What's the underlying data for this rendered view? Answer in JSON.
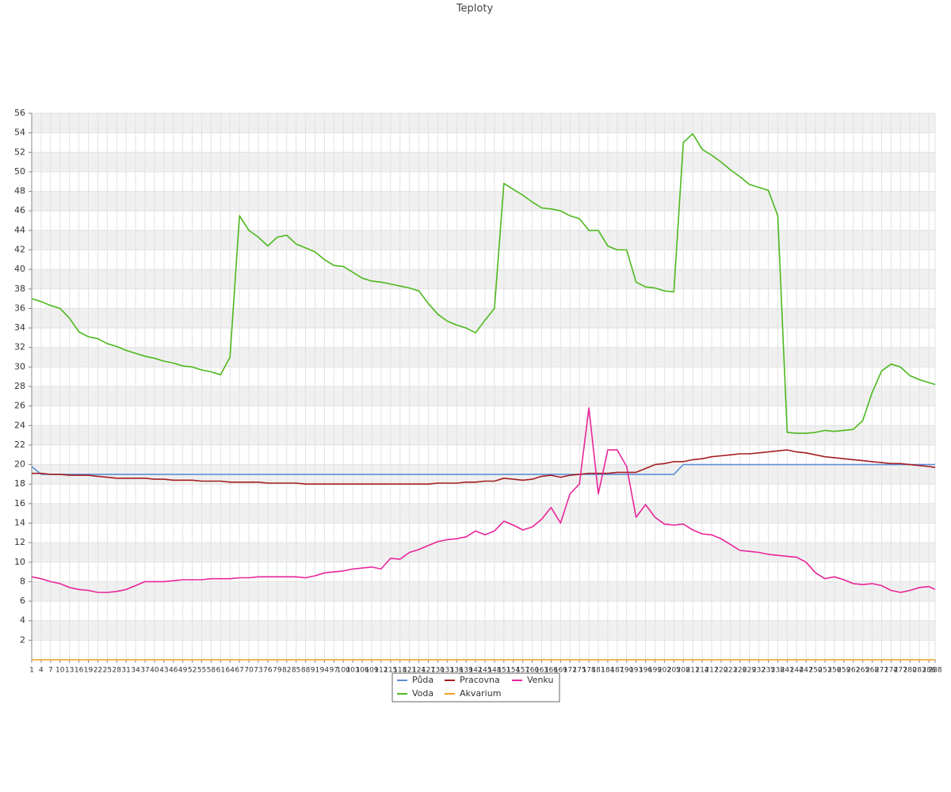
{
  "chart_data": {
    "type": "line",
    "title": "Teploty",
    "x": [
      1,
      4,
      7,
      10,
      13,
      16,
      19,
      22,
      25,
      28,
      31,
      34,
      37,
      40,
      43,
      46,
      49,
      52,
      55,
      58,
      61,
      64,
      67,
      70,
      73,
      76,
      79,
      82,
      85,
      88,
      91,
      94,
      97,
      100,
      103,
      106,
      109,
      112,
      115,
      118,
      121,
      124,
      127,
      130,
      133,
      136,
      139,
      142,
      145,
      148,
      151,
      154,
      157,
      160,
      163,
      166,
      169,
      172,
      175,
      178,
      181,
      184,
      187,
      190,
      193,
      196,
      199,
      202,
      205,
      208,
      211,
      214,
      217,
      220,
      223,
      226,
      229,
      232,
      235,
      238,
      241,
      244,
      247,
      250,
      253,
      256,
      259,
      262,
      265,
      268,
      271,
      274,
      277,
      280,
      283,
      286,
      288
    ],
    "xticks": [
      1,
      4,
      7,
      10,
      13,
      16,
      19,
      22,
      25,
      28,
      31,
      34,
      37,
      40,
      43,
      46,
      49,
      52,
      55,
      58,
      61,
      64,
      67,
      70,
      73,
      76,
      79,
      82,
      85,
      88,
      91,
      94,
      97,
      100,
      103,
      106,
      109,
      112,
      115,
      118,
      121,
      124,
      127,
      130,
      133,
      136,
      139,
      142,
      145,
      148,
      151,
      154,
      157,
      160,
      163,
      166,
      169,
      172,
      175,
      178,
      181,
      184,
      187,
      190,
      193,
      196,
      199,
      202,
      205,
      208,
      211,
      214,
      217,
      220,
      223,
      226,
      229,
      232,
      235,
      238,
      241,
      244,
      247,
      250,
      253,
      256,
      259,
      262,
      265,
      268,
      271,
      274,
      277,
      280,
      283,
      286,
      288
    ],
    "xlim": [
      1,
      288
    ],
    "ylim": [
      0,
      56
    ],
    "yticks": [
      2,
      4,
      6,
      8,
      10,
      12,
      14,
      16,
      18,
      20,
      22,
      24,
      26,
      28,
      30,
      32,
      34,
      36,
      38,
      40,
      42,
      44,
      46,
      48,
      50,
      52,
      54,
      56
    ],
    "grid": true,
    "legend": "bottom",
    "series": [
      {
        "name": "Půda",
        "color": "#5b8fd8",
        "values": [
          19.8,
          19,
          19,
          19,
          19,
          19,
          19,
          19,
          19,
          19,
          19,
          19,
          19,
          19,
          19,
          19,
          19,
          19,
          19,
          19,
          19,
          19,
          19,
          19,
          19,
          19,
          19,
          19,
          19,
          19,
          19,
          19,
          19,
          19,
          19,
          19,
          19,
          19,
          19,
          19,
          19,
          19,
          19,
          19,
          19,
          19,
          19,
          19,
          19,
          19,
          19,
          19,
          19,
          19,
          19,
          19,
          19,
          19,
          19,
          19,
          19,
          19,
          19,
          19,
          19,
          19,
          19,
          19,
          19,
          20,
          20,
          20,
          20,
          20,
          20,
          20,
          20,
          20,
          20,
          20,
          20,
          20,
          20,
          20,
          20,
          20,
          20,
          20,
          20,
          20,
          20,
          20,
          20,
          20,
          20,
          20,
          20
        ]
      },
      {
        "name": "Pracovna",
        "color": "#a51e22",
        "values": [
          19.1,
          19.1,
          19,
          19,
          18.9,
          18.9,
          18.9,
          18.8,
          18.7,
          18.6,
          18.6,
          18.6,
          18.6,
          18.5,
          18.5,
          18.4,
          18.4,
          18.4,
          18.3,
          18.3,
          18.3,
          18.2,
          18.2,
          18.2,
          18.2,
          18.1,
          18.1,
          18.1,
          18.1,
          18,
          18,
          18,
          18,
          18,
          18,
          18,
          18,
          18,
          18,
          18,
          18,
          18,
          18,
          18.1,
          18.1,
          18.1,
          18.2,
          18.2,
          18.3,
          18.3,
          18.6,
          18.5,
          18.4,
          18.5,
          18.8,
          18.9,
          18.7,
          18.9,
          19,
          19.1,
          19.1,
          19.1,
          19.2,
          19.2,
          19.2,
          19.6,
          20,
          20.1,
          20.3,
          20.3,
          20.5,
          20.6,
          20.8,
          20.9,
          21,
          21.1,
          21.1,
          21.2,
          21.3,
          21.4,
          21.5,
          21.3,
          21.2,
          21,
          20.8,
          20.7,
          20.6,
          20.5,
          20.4,
          20.3,
          20.2,
          20.1,
          20.1,
          20,
          19.9,
          19.8,
          19.7
        ]
      },
      {
        "name": "Venku",
        "color": "#e8259a",
        "values": [
          8.5,
          8.3,
          8,
          7.8,
          7.4,
          7.2,
          7.1,
          6.9,
          6.9,
          7,
          7.2,
          7.6,
          8,
          8,
          8,
          8.1,
          8.2,
          8.2,
          8.2,
          8.3,
          8.3,
          8.3,
          8.4,
          8.4,
          8.5,
          8.5,
          8.5,
          8.5,
          8.5,
          8.4,
          8.6,
          8.9,
          9,
          9.1,
          9.3,
          9.4,
          9.5,
          9.3,
          10.4,
          10.3,
          11,
          11.3,
          11.7,
          12.1,
          12.3,
          12.4,
          12.6,
          13.2,
          12.8,
          13.2,
          14.2,
          13.8,
          13.3,
          13.6,
          14.4,
          15.6,
          14,
          17,
          18,
          25.8,
          17,
          21.5,
          21.5,
          19.8,
          14.6,
          15.9,
          14.6,
          13.9,
          13.8,
          13.9,
          13.3,
          12.9,
          12.8,
          12.4,
          11.8,
          11.2,
          11.1,
          11,
          10.8,
          10.7,
          10.6,
          10.5,
          10,
          8.9,
          8.3,
          8.5,
          8.2,
          7.8,
          7.7,
          7.8,
          7.6,
          7.1,
          6.9,
          7.1,
          7.4,
          7.5,
          7.2
        ]
      },
      {
        "name": "Voda",
        "color": "#4cb81c",
        "values": [
          37,
          36.7,
          36.3,
          36,
          35,
          33.6,
          33.1,
          32.9,
          32.4,
          32.1,
          31.7,
          31.4,
          31.1,
          30.9,
          30.6,
          30.4,
          30.1,
          30,
          29.7,
          29.5,
          29.2,
          31,
          45.5,
          44,
          43.3,
          42.4,
          43.3,
          43.5,
          42.6,
          42.2,
          41.8,
          41,
          40.4,
          40.3,
          39.7,
          39.1,
          38.8,
          38.7,
          38.5,
          38.3,
          38.1,
          37.8,
          36.5,
          35.4,
          34.7,
          34.3,
          34,
          33.5,
          34.8,
          36,
          48.8,
          48.2,
          47.6,
          46.9,
          46.3,
          46.2,
          46,
          45.5,
          45.2,
          44,
          44,
          42.4,
          42,
          42,
          38.7,
          38.2,
          38.1,
          37.8,
          37.7,
          53,
          53.9,
          52.3,
          51.7,
          51,
          50.2,
          49.5,
          48.7,
          48.4,
          48.1,
          45.5,
          23.3,
          23.2,
          23.2,
          23.3,
          23.5,
          23.4,
          23.5,
          23.6,
          24.5,
          27.4,
          29.6,
          30.3,
          30,
          29.1,
          28.7,
          28.4,
          28.2
        ]
      },
      {
        "name": "Akvarium",
        "color": "#f0a020",
        "values": [
          0,
          0,
          0,
          0,
          0,
          0,
          0,
          0,
          0,
          0,
          0,
          0,
          0,
          0,
          0,
          0,
          0,
          0,
          0,
          0,
          0,
          0,
          0,
          0,
          0,
          0,
          0,
          0,
          0,
          0,
          0,
          0,
          0,
          0,
          0,
          0,
          0,
          0,
          0,
          0,
          0,
          0,
          0,
          0,
          0,
          0,
          0,
          0,
          0,
          0,
          0,
          0,
          0,
          0,
          0,
          0,
          0,
          0,
          0,
          0,
          0,
          0,
          0,
          0,
          0,
          0,
          0,
          0,
          0,
          0,
          0,
          0,
          0,
          0,
          0,
          0,
          0,
          0,
          0,
          0,
          0,
          0,
          0,
          0,
          0,
          0,
          0,
          0,
          0,
          0,
          0,
          0,
          0,
          0,
          0,
          0,
          0
        ]
      }
    ]
  }
}
